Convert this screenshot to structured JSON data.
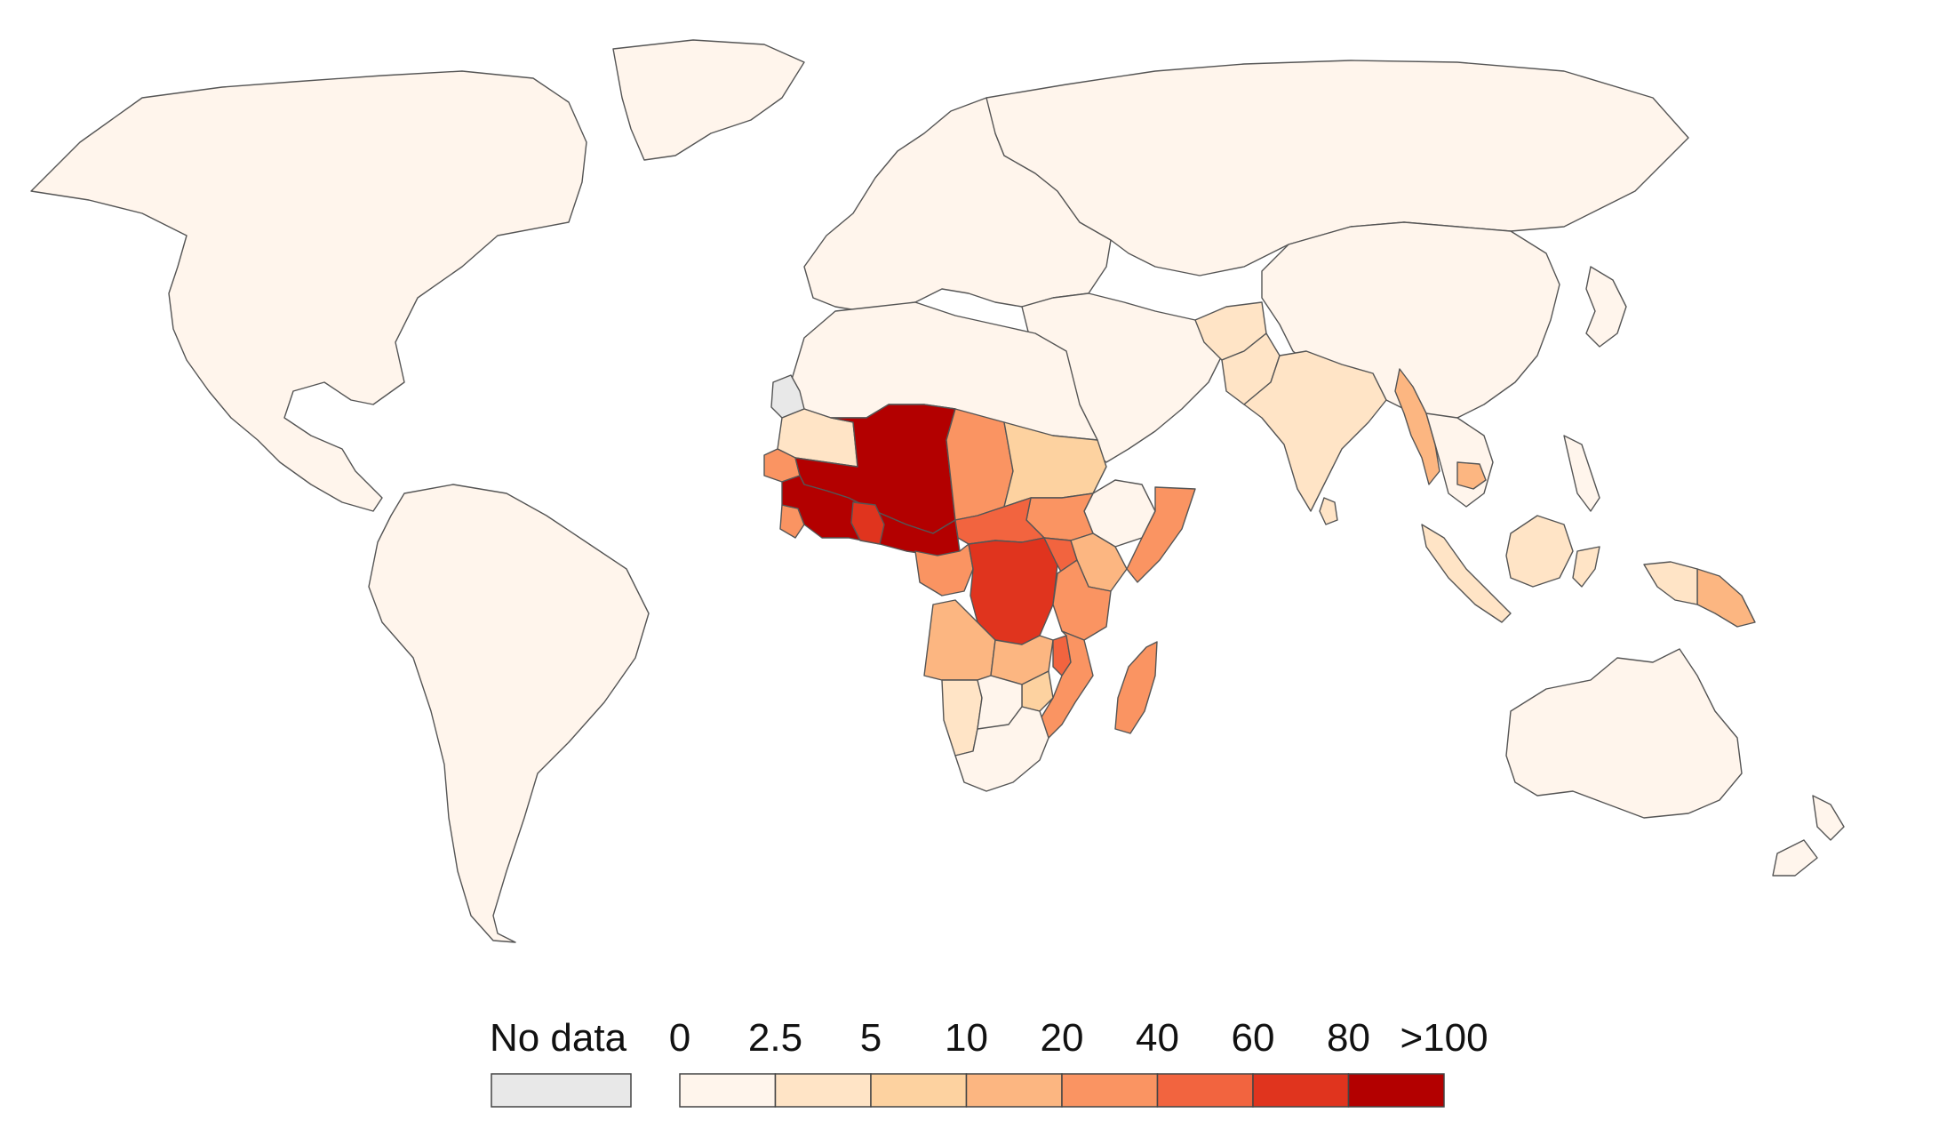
{
  "colors": {
    "background": "#ffffff",
    "border": "#555555",
    "no_data": "#e8e8e8"
  },
  "legend": {
    "no_data_label": "No data",
    "bins": [
      {
        "color": "#fff5ec"
      },
      {
        "color": "#ffe4c6"
      },
      {
        "color": "#fdd2a0"
      },
      {
        "color": "#fcb681"
      },
      {
        "color": "#fa9462"
      },
      {
        "color": "#f2643f"
      },
      {
        "color": "#e0341e"
      },
      {
        "color": "#b30000"
      }
    ],
    "tick_labels": [
      "0",
      "2.5",
      "5",
      "10",
      "20",
      "40",
      "60",
      "80",
      ">100"
    ]
  },
  "regions": [
    {
      "name": "North America",
      "bin": 0
    },
    {
      "name": "Greenland",
      "bin": 0
    },
    {
      "name": "South America",
      "bin": 0
    },
    {
      "name": "Europe",
      "bin": 0
    },
    {
      "name": "Russia and Central Asia",
      "bin": 0
    },
    {
      "name": "China and East Asia",
      "bin": 0
    },
    {
      "name": "Japan",
      "bin": 0
    },
    {
      "name": "Middle East",
      "bin": 0
    },
    {
      "name": "North Africa",
      "bin": 0
    },
    {
      "name": "Western Sahara",
      "bin": -1
    },
    {
      "name": "Mauritania",
      "bin": 1
    },
    {
      "name": "Senegal",
      "bin": 4
    },
    {
      "name": "Sierra Leone",
      "bin": 4
    },
    {
      "name": "Sahel West Africa",
      "bin": 7
    },
    {
      "name": "Coastal West Africa",
      "bin": 7
    },
    {
      "name": "Ghana",
      "bin": 6
    },
    {
      "name": "Chad",
      "bin": 4
    },
    {
      "name": "Sudan",
      "bin": 2
    },
    {
      "name": "Ethiopia",
      "bin": 0
    },
    {
      "name": "Somalia",
      "bin": 4
    },
    {
      "name": "South Sudan",
      "bin": 4
    },
    {
      "name": "Central African Republic",
      "bin": 5
    },
    {
      "name": "Cameroon",
      "bin": 4
    },
    {
      "name": "DR Congo",
      "bin": 6
    },
    {
      "name": "Uganda",
      "bin": 5
    },
    {
      "name": "Kenya",
      "bin": 3
    },
    {
      "name": "Tanzania",
      "bin": 4
    },
    {
      "name": "Angola",
      "bin": 3
    },
    {
      "name": "Zambia",
      "bin": 3
    },
    {
      "name": "Malawi",
      "bin": 5
    },
    {
      "name": "Mozambique",
      "bin": 4
    },
    {
      "name": "Zimbabwe",
      "bin": 2
    },
    {
      "name": "Namibia",
      "bin": 1
    },
    {
      "name": "Botswana",
      "bin": 0
    },
    {
      "name": "South Africa",
      "bin": 0
    },
    {
      "name": "Madagascar",
      "bin": 4
    },
    {
      "name": "Afghanistan",
      "bin": 1
    },
    {
      "name": "Pakistan",
      "bin": 1
    },
    {
      "name": "India",
      "bin": 1
    },
    {
      "name": "Sri Lanka",
      "bin": 1
    },
    {
      "name": "Myanmar",
      "bin": 3
    },
    {
      "name": "Indochina",
      "bin": 0
    },
    {
      "name": "Cambodia",
      "bin": 3
    },
    {
      "name": "Sumatra",
      "bin": 1
    },
    {
      "name": "Borneo",
      "bin": 1
    },
    {
      "name": "Sulawesi",
      "bin": 1
    },
    {
      "name": "Philippines",
      "bin": 0
    },
    {
      "name": "Papua New Guinea",
      "bin": 3
    },
    {
      "name": "West Papua",
      "bin": 1
    },
    {
      "name": "Australia",
      "bin": 0
    },
    {
      "name": "New Zealand",
      "bin": 0
    }
  ]
}
